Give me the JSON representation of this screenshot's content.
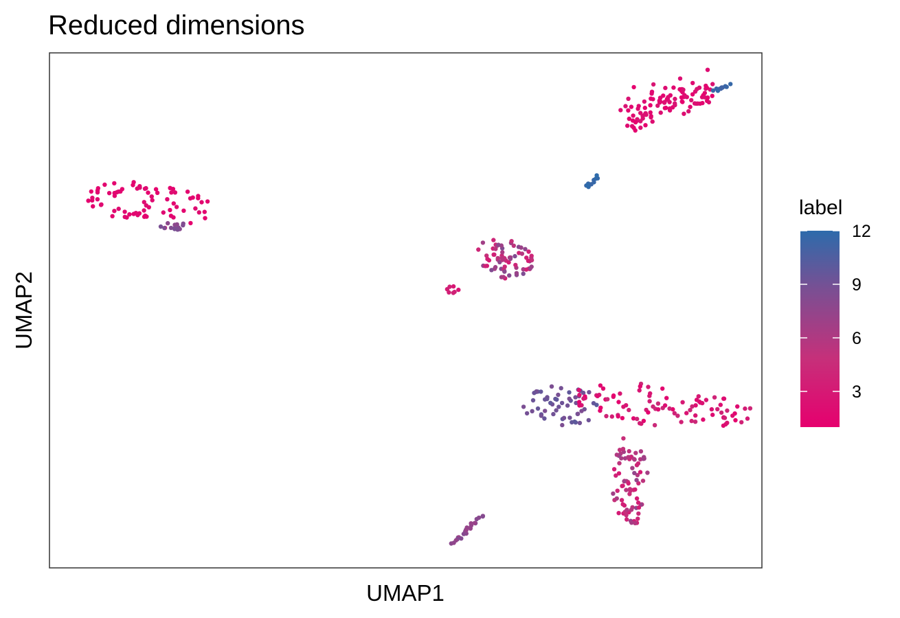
{
  "chart_data": {
    "type": "scatter",
    "title": "Reduced dimensions",
    "xlabel": "UMAP1",
    "ylabel": "UMAP2",
    "xlim": [
      0,
      100
    ],
    "ylim": [
      0,
      100
    ],
    "axis_ticks_shown": false,
    "grid": false,
    "legend": {
      "title": "label",
      "type": "colorbar",
      "placement": "right",
      "range": [
        1,
        12
      ],
      "ticks": [
        "3",
        "6",
        "9",
        "12"
      ],
      "colors": {
        "low": "#e6006e",
        "high": "#2d6bab"
      }
    },
    "clusters": [
      {
        "shape": "blob",
        "cx": 14.5,
        "cy": 70.5,
        "rx": 9.5,
        "ry": 4.2,
        "count": 75,
        "label_range": [
          1.0,
          2.0
        ],
        "rotation": -12
      },
      {
        "shape": "blob",
        "cx": 17.3,
        "cy": 66.4,
        "rx": 1.8,
        "ry": 0.9,
        "count": 14,
        "label_range": [
          7.5,
          8.8
        ],
        "rotation": 0
      },
      {
        "shape": "arc",
        "cx": 86.0,
        "cy": 91.0,
        "count": 110,
        "label_range": [
          1.0,
          2.8
        ],
        "points_path": [
          [
            81.5,
            86.0
          ],
          [
            83.0,
            88.5
          ],
          [
            85.5,
            90.2
          ],
          [
            88.0,
            91.4
          ],
          [
            90.5,
            92.0
          ],
          [
            92.5,
            91.8
          ]
        ],
        "spread": 1.8
      },
      {
        "shape": "line",
        "count": 12,
        "label_range": [
          11.0,
          12.0
        ],
        "from": [
          93.0,
          92.5
        ],
        "to": [
          95.5,
          94.0
        ]
      },
      {
        "shape": "line",
        "count": 12,
        "label_range": [
          11.5,
          12.0
        ],
        "from": [
          75.5,
          74.0
        ],
        "to": [
          77.0,
          76.0
        ]
      },
      {
        "shape": "blob",
        "cx": 64.0,
        "cy": 60.0,
        "rx": 4.5,
        "ry": 3.5,
        "count": 70,
        "label_range": [
          3.0,
          8.5
        ],
        "rotation": -40
      },
      {
        "shape": "blob",
        "cx": 56.5,
        "cy": 54.0,
        "rx": 1.2,
        "ry": 0.7,
        "count": 7,
        "label_range": [
          2.5,
          4.0
        ],
        "rotation": 0
      },
      {
        "shape": "blob",
        "cx": 72.0,
        "cy": 31.5,
        "rx": 5.5,
        "ry": 4.0,
        "count": 55,
        "label_range": [
          8.5,
          10.0
        ],
        "rotation": 0
      },
      {
        "shape": "blob",
        "cx": 86.0,
        "cy": 31.5,
        "rx": 13.0,
        "ry": 4.0,
        "count": 95,
        "label_range": [
          1.0,
          4.5
        ],
        "rotation": -8
      },
      {
        "shape": "blob",
        "cx": 81.5,
        "cy": 17.0,
        "rx": 2.5,
        "ry": 9.0,
        "count": 80,
        "label_range": [
          3.0,
          7.5
        ],
        "rotation": 0
      },
      {
        "shape": "line",
        "count": 25,
        "label_range": [
          7.0,
          8.5
        ],
        "from": [
          56.5,
          4.5
        ],
        "to": [
          61.0,
          10.5
        ]
      }
    ]
  }
}
